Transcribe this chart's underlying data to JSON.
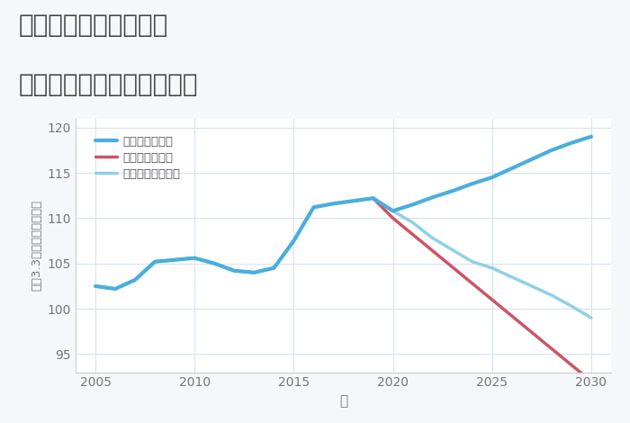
{
  "title_line1": "岐阜県関市四季ノ台の",
  "title_line2": "中古マンションの価格推移",
  "xlabel": "年",
  "ylabel": "坪（3.3㎡）単価（万円）",
  "ylim": [
    93,
    121
  ],
  "yticks": [
    95,
    100,
    105,
    110,
    115,
    120
  ],
  "background_color": "#f5f7fb",
  "plot_bg_color": "#ffffff",
  "grid_color": "#d8e4f0",
  "good_scenario": {
    "label": "グッドシナリオ",
    "color": "#4aaedd",
    "x": [
      2005,
      2006,
      2007,
      2008,
      2009,
      2010,
      2011,
      2012,
      2013,
      2014,
      2015,
      2016,
      2017,
      2018,
      2019,
      2020,
      2021,
      2022,
      2023,
      2024,
      2025,
      2026,
      2027,
      2028,
      2029,
      2030
    ],
    "y": [
      102.5,
      102.2,
      103.2,
      105.2,
      105.4,
      105.6,
      105.0,
      104.2,
      104.0,
      104.5,
      107.5,
      111.2,
      111.6,
      111.9,
      112.2,
      110.8,
      111.5,
      112.3,
      113.0,
      113.8,
      114.5,
      115.5,
      116.5,
      117.5,
      118.3,
      119.0
    ],
    "linewidth": 3.0
  },
  "bad_scenario": {
    "label": "バッドシナリオ",
    "color": "#cc5566",
    "x": [
      2019,
      2020,
      2025,
      2030
    ],
    "y": [
      112.2,
      110.0,
      101.0,
      92.0
    ],
    "linewidth": 2.5
  },
  "normal_scenario": {
    "label": "ノーマルシナリオ",
    "color": "#90d0e8",
    "x": [
      2005,
      2006,
      2007,
      2008,
      2009,
      2010,
      2011,
      2012,
      2013,
      2014,
      2015,
      2016,
      2017,
      2018,
      2019,
      2020,
      2021,
      2022,
      2023,
      2024,
      2025,
      2026,
      2027,
      2028,
      2029,
      2030
    ],
    "y": [
      102.5,
      102.2,
      103.2,
      105.2,
      105.4,
      105.6,
      105.0,
      104.2,
      104.0,
      104.5,
      107.5,
      111.2,
      111.6,
      111.9,
      112.2,
      110.8,
      109.5,
      107.8,
      106.5,
      105.2,
      104.5,
      103.5,
      102.5,
      101.5,
      100.3,
      99.0
    ],
    "linewidth": 2.5
  },
  "title_color": "#444444",
  "title_fontsize": 20,
  "axis_label_color": "#777777",
  "tick_color": "#777777",
  "legend_text_color": "#555555"
}
